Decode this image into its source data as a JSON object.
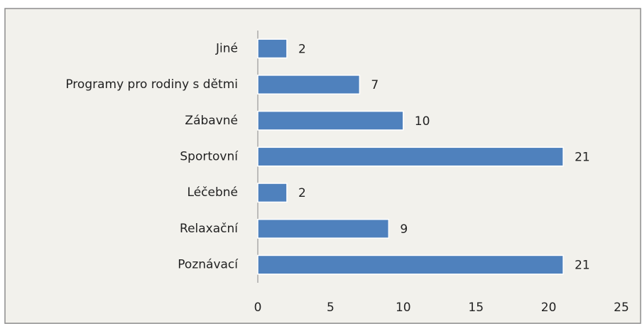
{
  "chart_data": {
    "type": "bar",
    "orientation": "horizontal",
    "categories": [
      "Jiné",
      "Programy pro rodiny s dětmi",
      "Zábavné",
      "Sportovní",
      "Léčebné",
      "Relaxační",
      "Poznávací"
    ],
    "values": [
      2,
      7,
      10,
      21,
      2,
      9,
      21
    ],
    "color": "#4f81bd",
    "xlim": [
      0,
      25
    ],
    "xticks": [
      0,
      5,
      10,
      15,
      20,
      25
    ],
    "grid": false
  }
}
